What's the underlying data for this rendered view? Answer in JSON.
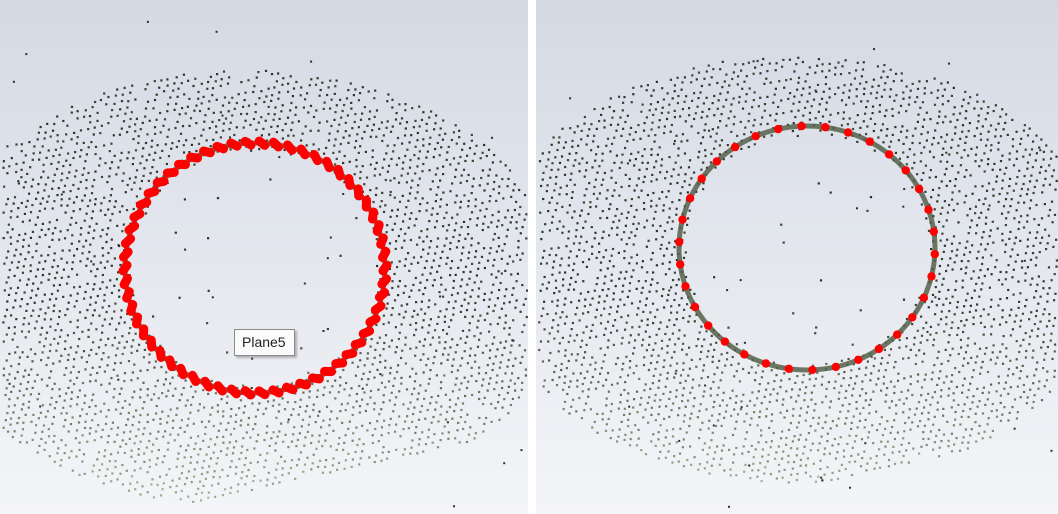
{
  "views": [
    {
      "id": "left",
      "tag_label": "Plane5",
      "background_top": "#d4d9e4",
      "background_bottom": "#f4f5f8",
      "point_color_dark": "#2a3226",
      "point_color_light": "#c8cfb0",
      "marker_color": "#ff0000",
      "marker_style": "elongated-dense"
    },
    {
      "id": "right",
      "background_top": "#d4d9e4",
      "background_bottom": "#f4f5f8",
      "point_color_dark": "#2a3226",
      "point_color_light": "#c8cfb0",
      "marker_color": "#ff0000",
      "marker_style": "sparse-dots"
    }
  ]
}
